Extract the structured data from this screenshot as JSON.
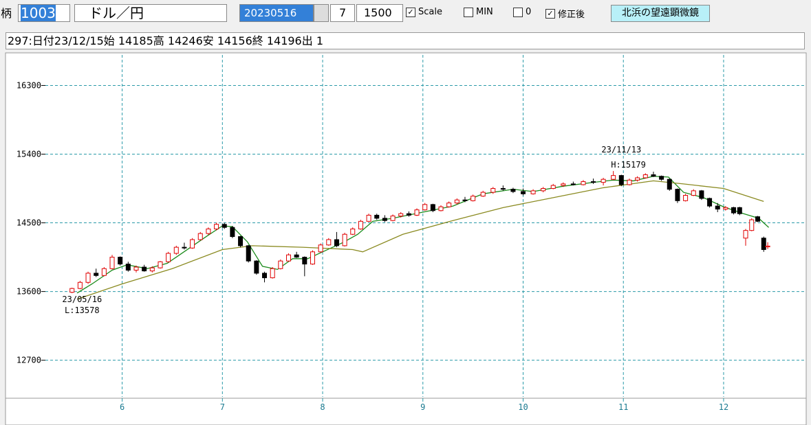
{
  "toolbar": {
    "label": "柄",
    "code": "1003",
    "name": "ドル／円",
    "date": "20230516",
    "period": "7",
    "count": "1500",
    "checks": [
      {
        "label": "Scale",
        "checked": true
      },
      {
        "label": "MIN",
        "checked": false
      },
      {
        "label": "0",
        "checked": false
      },
      {
        "label": "修正後",
        "checked": true
      }
    ],
    "button": "北浜の望遠顕微鏡"
  },
  "info": "297:日付23/12/15始 14185高 14246安 14156終 14196出 1",
  "chart_data": {
    "type": "candlestick",
    "grid": true,
    "xlim": [
      4.85,
      12.81
    ],
    "xticks": [
      6,
      7,
      8,
      9,
      10,
      11,
      12
    ],
    "ylim": [
      12220,
      16700
    ],
    "yticks": [
      12700,
      13600,
      14500,
      15400,
      16300
    ],
    "up_color": "#e00000",
    "down_color": "#000000",
    "annotations": [
      "23/11/13",
      "H:15179",
      "23/05/16",
      "L:13578"
    ],
    "x": [
      5.5,
      5.58,
      5.66,
      5.74,
      5.82,
      5.9,
      5.98,
      6.06,
      6.14,
      6.22,
      6.3,
      6.38,
      6.46,
      6.54,
      6.62,
      6.7,
      6.78,
      6.86,
      6.94,
      7.02,
      7.1,
      7.18,
      7.26,
      7.34,
      7.42,
      7.5,
      7.58,
      7.66,
      7.74,
      7.82,
      7.9,
      7.98,
      8.06,
      8.14,
      8.22,
      8.3,
      8.38,
      8.46,
      8.54,
      8.62,
      8.7,
      8.78,
      8.86,
      8.94,
      9.02,
      9.1,
      9.18,
      9.26,
      9.34,
      9.42,
      9.5,
      9.6,
      9.7,
      9.8,
      9.9,
      10.0,
      10.1,
      10.2,
      10.3,
      10.4,
      10.5,
      10.6,
      10.7,
      10.8,
      10.9,
      10.98,
      11.06,
      11.14,
      11.22,
      11.3,
      11.38,
      11.46,
      11.54,
      11.62,
      11.7,
      11.78,
      11.86,
      11.94,
      12.02,
      12.1,
      12.16,
      12.22,
      12.28,
      12.34,
      12.4,
      12.44
    ],
    "open": [
      13590,
      13640,
      13720,
      13840,
      13810,
      13900,
      14050,
      13960,
      13880,
      13920,
      13870,
      13910,
      13990,
      14100,
      14180,
      14170,
      14280,
      14360,
      14420,
      14480,
      14440,
      14320,
      14200,
      14000,
      13840,
      13780,
      13900,
      14000,
      14080,
      14050,
      13960,
      14120,
      14210,
      14280,
      14200,
      14350,
      14420,
      14520,
      14600,
      14560,
      14530,
      14590,
      14620,
      14600,
      14670,
      14740,
      14660,
      14710,
      14760,
      14800,
      14790,
      14850,
      14900,
      14950,
      14940,
      14910,
      14880,
      14920,
      14950,
      14990,
      15010,
      15000,
      15040,
      15030,
      15070,
      15120,
      15000,
      15060,
      15090,
      15130,
      15110,
      15070,
      14940,
      14790,
      14860,
      14920,
      14820,
      14720,
      14680,
      14700,
      14700,
      14300,
      14400,
      14580,
      14300,
      14185
    ],
    "high": [
      13650,
      13740,
      13860,
      13900,
      13920,
      14080,
      14060,
      13990,
      13940,
      13950,
      13930,
      14000,
      14120,
      14200,
      14240,
      14300,
      14380,
      14440,
      14500,
      14500,
      14460,
      14330,
      14210,
      14010,
      13860,
      13920,
      14020,
      14100,
      14120,
      14060,
      14140,
      14230,
      14300,
      14380,
      14370,
      14440,
      14540,
      14620,
      14620,
      14600,
      14610,
      14640,
      14650,
      14690,
      14760,
      14750,
      14730,
      14780,
      14820,
      14840,
      14870,
      14920,
      14970,
      14990,
      14960,
      14950,
      14940,
      14970,
      15010,
      15030,
      15040,
      15060,
      15080,
      15090,
      15179,
      15130,
      15080,
      15110,
      15150,
      15170,
      15120,
      15080,
      14950,
      14880,
      14940,
      14930,
      14830,
      14760,
      14720,
      14710,
      14710,
      14420,
      14560,
      14590,
      14320,
      14246
    ],
    "low": [
      13578,
      13630,
      13700,
      13790,
      13800,
      13890,
      13940,
      13860,
      13850,
      13860,
      13850,
      13900,
      13980,
      14080,
      14150,
      14160,
      14270,
      14340,
      14400,
      14420,
      14300,
      14180,
      13980,
      13820,
      13720,
      13770,
      13890,
      13990,
      14040,
      13800,
      13950,
      14110,
      14200,
      14180,
      14190,
      14340,
      14410,
      14510,
      14540,
      14510,
      14520,
      14570,
      14580,
      14590,
      14660,
      14640,
      14650,
      14700,
      14740,
      14770,
      14780,
      14840,
      14880,
      14920,
      14890,
      14860,
      14870,
      14900,
      14940,
      14970,
      14990,
      14990,
      15010,
      14990,
      15060,
      14980,
      14990,
      15040,
      15080,
      15100,
      15050,
      14920,
      14760,
      14780,
      14850,
      14800,
      14700,
      14640,
      14660,
      14610,
      14600,
      14200,
      14390,
      14510,
      14120,
      14156
    ],
    "close": [
      13640,
      13720,
      13840,
      13810,
      13900,
      14050,
      13960,
      13880,
      13920,
      13870,
      13910,
      13990,
      14100,
      14180,
      14170,
      14280,
      14360,
      14420,
      14480,
      14440,
      14320,
      14200,
      14000,
      13840,
      13780,
      13900,
      14000,
      14080,
      14050,
      13960,
      14120,
      14210,
      14280,
      14200,
      14350,
      14420,
      14520,
      14600,
      14560,
      14530,
      14590,
      14620,
      14600,
      14670,
      14740,
      14660,
      14710,
      14760,
      14800,
      14790,
      14850,
      14900,
      14950,
      14940,
      14910,
      14880,
      14920,
      14950,
      14990,
      15010,
      15000,
      15040,
      15030,
      15070,
      15120,
      15000,
      15060,
      15090,
      15130,
      15110,
      15070,
      14940,
      14790,
      14860,
      14920,
      14820,
      14720,
      14680,
      14700,
      14630,
      14620,
      14400,
      14540,
      14520,
      14150,
      14196
    ],
    "lines": [
      {
        "color": "#1a8a1a",
        "x": [
          5.55,
          5.7,
          5.9,
          6.05,
          6.25,
          6.45,
          6.65,
          6.85,
          7.0,
          7.1,
          7.25,
          7.4,
          7.55,
          7.7,
          7.85,
          8.0,
          8.2,
          8.35,
          8.5,
          8.7,
          9.0,
          9.3,
          9.6,
          9.9,
          10.1,
          10.4,
          10.7,
          10.9,
          11.1,
          11.3,
          11.45,
          11.6,
          11.8,
          12.0,
          12.2,
          12.35,
          12.45
        ],
        "values": [
          13580,
          13700,
          13880,
          13950,
          13900,
          13970,
          14150,
          14330,
          14460,
          14450,
          14250,
          13930,
          13890,
          14030,
          14030,
          14120,
          14240,
          14350,
          14520,
          14560,
          14640,
          14720,
          14880,
          14940,
          14910,
          14980,
          15030,
          15060,
          15050,
          15110,
          15100,
          14900,
          14830,
          14710,
          14620,
          14560,
          14440
        ]
      },
      {
        "color": "#8a8a20",
        "x": [
          5.55,
          6.0,
          6.5,
          7.0,
          7.3,
          7.8,
          8.3,
          8.4,
          8.8,
          9.3,
          9.8,
          10.3,
          10.8,
          11.3,
          11.6,
          12.0,
          12.4
        ],
        "values": [
          13500,
          13700,
          13900,
          14150,
          14200,
          14180,
          14150,
          14120,
          14350,
          14530,
          14700,
          14830,
          14960,
          15050,
          15010,
          14950,
          14780
        ]
      }
    ]
  }
}
